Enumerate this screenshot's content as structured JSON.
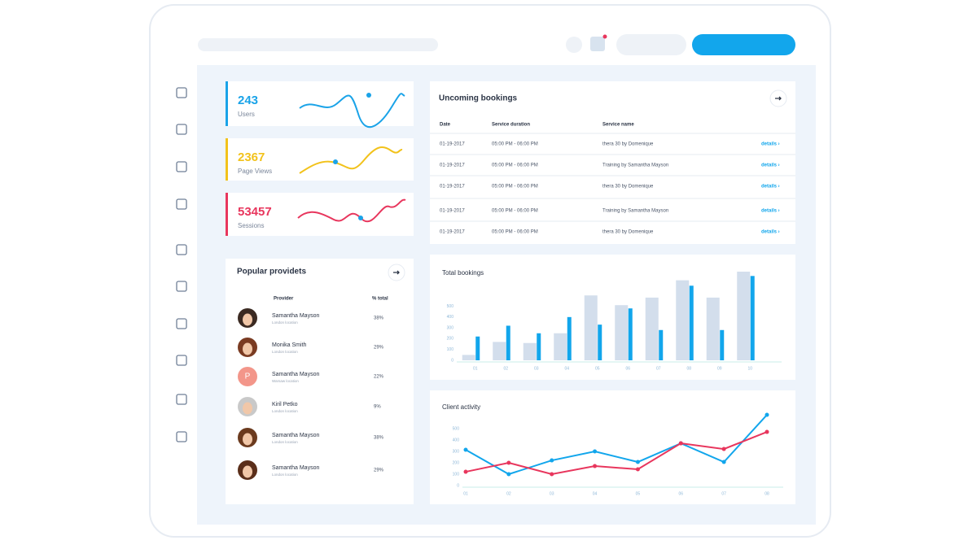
{
  "stats": [
    {
      "value": 243,
      "label": "Users",
      "color": "#1aa3e8"
    },
    {
      "value": 2367,
      "label": "Page Views",
      "color": "#f2c21b"
    },
    {
      "value": 53457,
      "label": "Sessions",
      "color": "#e8365d"
    }
  ],
  "bookings": {
    "title": "Uncoming bookings",
    "columns": [
      "Date",
      "Service duration",
      "Service name"
    ],
    "rows": [
      [
        "01-19-2017",
        "05:00 PM - 06:00 PM",
        "thera 30 by Domenique",
        "details ›"
      ],
      [
        "01-19-2017",
        "05:00 PM - 06:00 PM",
        "Training by Samantha Mayson",
        "details ›"
      ],
      [
        "01-19-2017",
        "05:00 PM - 06:00 PM",
        "thera 30 by Domenique",
        "details ›"
      ],
      [
        "01-19-2017",
        "05:00 PM - 06:00 PM",
        "Training by Samantha Mayson",
        "details ›"
      ],
      [
        "01-19-2017",
        "05:00 PM - 06:00 PM",
        "thera 30 by Domenique",
        "details ›"
      ]
    ]
  },
  "providers": {
    "title": "Popular providets",
    "columns": [
      "Provider",
      "% total"
    ],
    "rows": [
      {
        "name": "Samantha Mayson",
        "location": "London location",
        "share": "38%"
      },
      {
        "name": "Monika Smith",
        "location": "London location",
        "share": "29%"
      },
      {
        "name": "Samantha Mayson",
        "location": "Warsaw location",
        "share": "22%",
        "initial": "P"
      },
      {
        "name": "Kiril Petko",
        "location": "London location",
        "share": "9%"
      },
      {
        "name": "Samantha Mayson",
        "location": "London location",
        "share": "38%"
      },
      {
        "name": "Samantha Mayson",
        "location": "London location",
        "share": "29%"
      }
    ]
  },
  "chart_data": [
    {
      "type": "bar",
      "title": "Total bookings",
      "categories": [
        "01",
        "02",
        "03",
        "04",
        "05",
        "06",
        "07",
        "08",
        "09",
        "10"
      ],
      "series": [
        {
          "color": "#d3deec",
          "values": [
            50,
            170,
            160,
            250,
            600,
            510,
            580,
            740,
            580,
            820
          ]
        },
        {
          "color": "#12a6ec",
          "values": [
            220,
            320,
            250,
            400,
            330,
            480,
            280,
            690,
            280,
            780
          ]
        }
      ],
      "ylim": [
        0,
        850
      ],
      "yticks": [
        0,
        100,
        200,
        300,
        400,
        500
      ],
      "grid": false
    },
    {
      "type": "line",
      "title": "Client activity",
      "categories": [
        "01",
        "02",
        "03",
        "04",
        "05",
        "06",
        "07",
        "08"
      ],
      "series": [
        {
          "color": "#12a6ec",
          "values": [
            314,
            100,
            221,
            300,
            207,
            371,
            207,
            621
          ]
        },
        {
          "color": "#e8365d",
          "values": [
            121,
            200,
            100,
            171,
            143,
            371,
            321,
            471
          ]
        }
      ],
      "ylim": [
        0,
        650
      ],
      "yticks": [
        0,
        100,
        200,
        300,
        400,
        500
      ],
      "grid": false
    }
  ]
}
